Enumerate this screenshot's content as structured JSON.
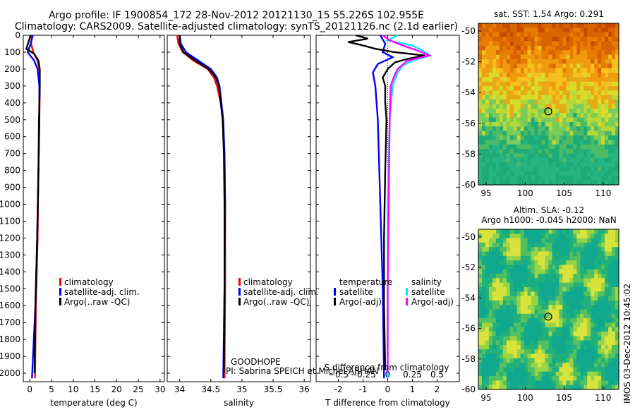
{
  "title": {
    "line1": "Argo profile: IF 1900854_172 28-Nov-2012 20121130_15 55.226S 102.955E",
    "line2": "Climatology: CARS2009. Satellite-adjusted climatology: synTS_20121126.nc (2.1d earlier)"
  },
  "colors": {
    "climatology": "#ff0000",
    "satellite": "#0000ff",
    "argo": "#000000",
    "sal_satellite": "#00e5ff",
    "sal_argo": "#ff00ff"
  },
  "chart_data": [
    {
      "type": "line",
      "name": "temperature-profile",
      "xlabel": "temperature (deg C)",
      "ylim": [
        2050,
        0
      ],
      "xlim": [
        -1.5,
        31
      ],
      "x_ticks": [
        0,
        5,
        10,
        15,
        20,
        25,
        30
      ],
      "y_ticks": [
        0,
        100,
        200,
        300,
        400,
        500,
        600,
        700,
        800,
        900,
        1000,
        1100,
        1200,
        1300,
        1400,
        1500,
        1600,
        1700,
        1800,
        1900,
        2000
      ],
      "legend": [
        "climatology",
        "satellite-adj. clim.",
        "Argo(..raw -QC)"
      ],
      "series": [
        {
          "name": "climatology",
          "depth": [
            0,
            50,
            100,
            150,
            200,
            300,
            500,
            800,
            1200,
            1600,
            2030
          ],
          "values": [
            0.5,
            0.3,
            0.8,
            1.8,
            2.2,
            2.3,
            2.2,
            2.0,
            1.8,
            1.4,
            1.2
          ]
        },
        {
          "name": "satellite-adj. clim.",
          "depth": [
            0,
            50,
            100,
            150,
            200,
            300,
            500,
            800,
            1200,
            1600,
            2030
          ],
          "values": [
            0.7,
            0.2,
            -0.5,
            1.0,
            1.8,
            2.2,
            2.2,
            2.0,
            1.7,
            1.3,
            0.5
          ]
        },
        {
          "name": "Argo",
          "depth": [
            0,
            40,
            80,
            110,
            150,
            200,
            300,
            500,
            800,
            1200,
            1600,
            2000
          ],
          "values": [
            0.2,
            -0.3,
            -0.8,
            1.0,
            2.0,
            2.3,
            2.3,
            2.1,
            2.0,
            1.7,
            1.3,
            1.1
          ]
        }
      ]
    },
    {
      "type": "line",
      "name": "salinity-profile",
      "xlabel": "salinity",
      "ylim": [
        2050,
        0
      ],
      "xlim": [
        33.8,
        36.1
      ],
      "x_ticks": [
        34,
        34.5,
        35,
        35.5,
        36
      ],
      "legend": [
        "climatology",
        "satellite-adj. clim.",
        "Argo(..raw -QC)"
      ],
      "annotation": [
        "GOODHOPE",
        "PI: Sabrina SPEICH et Michel ARHAN"
      ],
      "series": [
        {
          "name": "climatology",
          "depth": [
            0,
            50,
            100,
            150,
            200,
            250,
            300,
            400,
            500,
            700,
            1000,
            1500,
            2030
          ],
          "values": [
            33.96,
            33.98,
            34.05,
            34.22,
            34.45,
            34.55,
            34.6,
            34.66,
            34.69,
            34.72,
            34.73,
            34.73,
            34.72
          ]
        },
        {
          "name": "satellite-adj. clim.",
          "depth": [
            0,
            50,
            100,
            150,
            200,
            250,
            300,
            400,
            500,
            700,
            1000,
            1500,
            2030
          ],
          "values": [
            34.0,
            34.02,
            34.1,
            34.3,
            34.5,
            34.6,
            34.64,
            34.67,
            34.7,
            34.72,
            34.73,
            34.72,
            34.7
          ]
        },
        {
          "name": "Argo",
          "depth": [
            0,
            50,
            100,
            150,
            200,
            250,
            300,
            400,
            500,
            700,
            1000,
            1500,
            2000
          ],
          "values": [
            34.0,
            34.0,
            34.06,
            34.25,
            34.47,
            34.58,
            34.63,
            34.66,
            34.69,
            34.71,
            34.72,
            34.72,
            34.71
          ]
        }
      ]
    },
    {
      "type": "line",
      "name": "difference-profile",
      "xlabel": "T difference from climatology",
      "xlabel_top": "S difference from climatology",
      "ylim": [
        2050,
        0
      ],
      "xlim": [
        -2.9,
        2.9
      ],
      "x_ticks": [
        -2,
        -1,
        0,
        1,
        2
      ],
      "x_ticks_top_values": [
        -0.5,
        -0.25,
        0,
        0.25,
        0.5
      ],
      "x_ticks_top_labels": [
        "−0.5",
        "−0.25",
        "0",
        "0.25",
        "0.5"
      ],
      "legend_titles": [
        "temperature",
        "salinity"
      ],
      "legend": [
        "satellite",
        "Argo(-adj)",
        "satellite",
        "Argo(-adj)"
      ],
      "series": [
        {
          "name": "T satellite",
          "depth": [
            0,
            50,
            100,
            130,
            170,
            220,
            300,
            500,
            1000,
            1500,
            2030
          ],
          "values": [
            -0.3,
            -0.1,
            -0.2,
            0.2,
            -0.4,
            -0.6,
            -0.5,
            -0.4,
            -0.3,
            -0.2,
            -0.15
          ]
        },
        {
          "name": "T Argo(-adj)",
          "depth": [
            0,
            20,
            40,
            60,
            80,
            100,
            120,
            140,
            160,
            200,
            250,
            300,
            400,
            500,
            800,
            1200,
            1600,
            1980
          ],
          "values": [
            -1.3,
            -0.8,
            -1.6,
            -1.0,
            -0.5,
            0.3,
            1.5,
            0.8,
            0.3,
            0.0,
            -0.2,
            -0.1,
            -0.1,
            -0.05,
            -0.1,
            -0.15,
            -0.15,
            -0.1
          ]
        },
        {
          "name": "S satellite",
          "depth": [
            0,
            30,
            60,
            90,
            120,
            150,
            180,
            220,
            300,
            500,
            1000,
            1500,
            2030
          ],
          "values": [
            0.1,
            0.0,
            0.25,
            0.35,
            0.43,
            0.25,
            0.15,
            0.1,
            0.05,
            0.02,
            0.0,
            0.0,
            0.0
          ]
        },
        {
          "name": "S Argo(-adj)",
          "depth": [
            0,
            30,
            60,
            90,
            120,
            150,
            200,
            250,
            300,
            500,
            1000,
            1500,
            2000
          ],
          "values": [
            -0.05,
            0.02,
            0.15,
            0.3,
            0.42,
            0.2,
            0.1,
            0.06,
            0.03,
            0.02,
            0.01,
            0.0,
            0.0
          ]
        }
      ]
    },
    {
      "type": "heatmap",
      "name": "sst-map",
      "title": "sat. SST: 1.54 Argo: 0.291",
      "xlim": [
        94,
        112
      ],
      "ylim": [
        -60,
        -49.5
      ],
      "x_ticks": [
        95,
        100,
        105,
        110
      ],
      "y_ticks": [
        -50,
        -52,
        -54,
        -56,
        -58,
        -60
      ],
      "marker": {
        "lon": 102.955,
        "lat": -55.226
      }
    },
    {
      "type": "heatmap",
      "name": "sla-map",
      "title": "Altim. SLA: -0.12",
      "subtitle": "Argo h1000: -0.045 h2000: NaN",
      "xlim": [
        94,
        112
      ],
      "ylim": [
        -60,
        -49.5
      ],
      "x_ticks": [
        95,
        100,
        105,
        110
      ],
      "y_ticks": [
        -50,
        -52,
        -54,
        -56,
        -58,
        -60
      ],
      "marker": {
        "lon": 102.955,
        "lat": -55.226
      }
    }
  ],
  "footer": {
    "stamp": "IMOS 03-Dec-2012 10:45:02"
  }
}
